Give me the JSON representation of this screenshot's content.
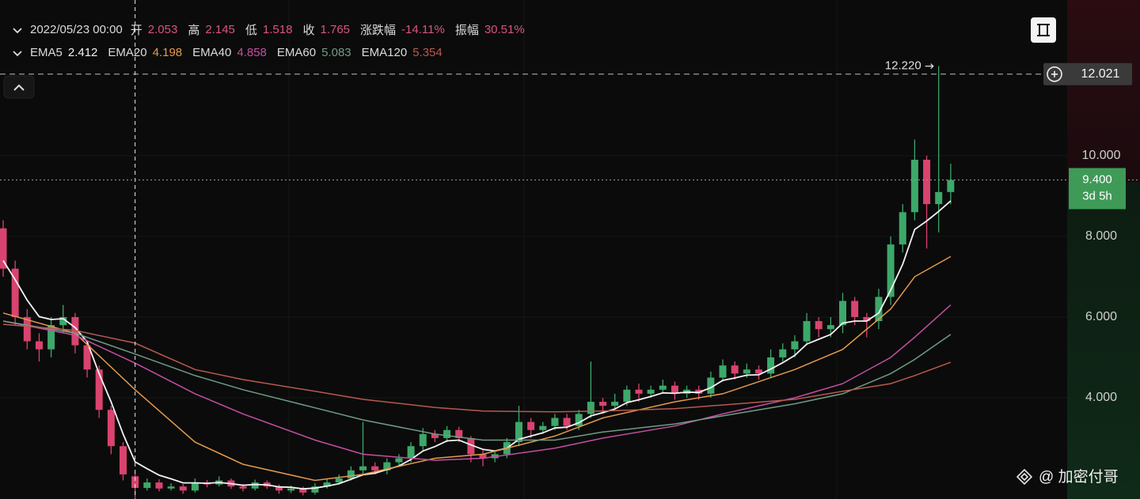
{
  "chart_data": {
    "type": "candlestick",
    "open": [
      8.2,
      7.2,
      6.0,
      5.4,
      5.2,
      5.8,
      6.0,
      5.3,
      4.7,
      3.7,
      2.8,
      2.053,
      1.765,
      1.9,
      1.75,
      1.8,
      1.7,
      1.9,
      1.85,
      1.95,
      1.8,
      1.75,
      1.9,
      1.8,
      1.7,
      1.75,
      1.65,
      1.8,
      1.9,
      2.0,
      2.2,
      2.3,
      2.2,
      2.4,
      2.5,
      2.8,
      3.1,
      3.0,
      3.2,
      3.0,
      2.6,
      2.5,
      2.6,
      2.9,
      3.4,
      3.2,
      3.3,
      3.5,
      3.3,
      3.6,
      3.9,
      3.8,
      3.9,
      4.2,
      4.1,
      4.2,
      4.3,
      4.1,
      4.2,
      4.1,
      4.5,
      4.8,
      4.6,
      4.7,
      4.6,
      5.0,
      5.2,
      5.4,
      5.9,
      5.7,
      5.8,
      6.4,
      6.0,
      5.9,
      6.5,
      7.8,
      8.6,
      9.9,
      8.8,
      9.1
    ],
    "high": [
      8.4,
      7.4,
      6.2,
      5.6,
      6.0,
      6.3,
      6.1,
      5.4,
      4.8,
      3.8,
      2.9,
      2.145,
      2.0,
      1.98,
      1.88,
      1.86,
      2.0,
      1.96,
      2.05,
      2.0,
      1.86,
      1.97,
      1.95,
      1.85,
      1.82,
      1.8,
      1.88,
      1.98,
      2.1,
      2.3,
      3.4,
      2.4,
      2.5,
      2.6,
      2.9,
      3.25,
      3.2,
      3.3,
      3.28,
      3.05,
      2.7,
      2.7,
      3.0,
      3.8,
      3.5,
      3.4,
      3.6,
      3.6,
      3.7,
      4.9,
      4.0,
      4.1,
      4.3,
      4.35,
      4.3,
      4.45,
      4.4,
      4.3,
      4.3,
      4.65,
      4.95,
      4.9,
      4.85,
      4.8,
      5.2,
      5.35,
      5.55,
      6.1,
      6.0,
      6.0,
      6.6,
      6.5,
      6.1,
      6.7,
      8.0,
      8.8,
      10.4,
      10.0,
      12.22,
      9.8
    ],
    "low": [
      7.0,
      5.8,
      5.2,
      4.9,
      5.0,
      5.6,
      5.1,
      4.5,
      3.5,
      2.6,
      1.95,
      1.518,
      1.7,
      1.68,
      1.7,
      1.62,
      1.65,
      1.78,
      1.8,
      1.74,
      1.68,
      1.7,
      1.74,
      1.62,
      1.64,
      1.58,
      1.6,
      1.75,
      1.85,
      1.95,
      2.1,
      2.1,
      2.1,
      2.3,
      2.4,
      2.7,
      2.9,
      2.9,
      2.9,
      2.4,
      2.3,
      2.4,
      2.5,
      2.8,
      3.0,
      3.1,
      3.2,
      3.2,
      3.2,
      3.5,
      3.6,
      3.7,
      3.8,
      3.9,
      4.0,
      4.1,
      3.95,
      4.0,
      3.95,
      4.0,
      4.4,
      4.45,
      4.5,
      4.45,
      4.5,
      4.9,
      5.0,
      5.3,
      5.5,
      5.5,
      5.6,
      5.8,
      5.5,
      5.7,
      6.3,
      7.6,
      8.4,
      7.7,
      8.1,
      8.8
    ],
    "close": [
      7.2,
      6.0,
      5.4,
      5.2,
      5.8,
      6.0,
      5.3,
      4.7,
      3.7,
      2.8,
      2.1,
      1.765,
      1.9,
      1.75,
      1.8,
      1.7,
      1.9,
      1.85,
      1.95,
      1.8,
      1.75,
      1.9,
      1.8,
      1.7,
      1.75,
      1.65,
      1.8,
      1.9,
      2.0,
      2.2,
      2.3,
      2.2,
      2.4,
      2.5,
      2.8,
      3.1,
      3.0,
      3.2,
      3.0,
      2.6,
      2.5,
      2.6,
      2.9,
      3.4,
      3.2,
      3.3,
      3.5,
      3.3,
      3.6,
      3.9,
      3.8,
      3.9,
      4.2,
      4.1,
      4.2,
      4.3,
      4.1,
      4.2,
      4.1,
      4.5,
      4.8,
      4.6,
      4.7,
      4.6,
      5.0,
      5.2,
      5.4,
      5.9,
      5.7,
      5.8,
      6.4,
      6.0,
      5.9,
      6.5,
      7.8,
      8.6,
      9.9,
      8.8,
      9.1,
      9.4
    ],
    "up_color": "#3da86a",
    "down_color": "#d9436f",
    "ylim": [
      1.49,
      13.86
    ],
    "yticks": [
      {
        "value": 4,
        "label": "4.000"
      },
      {
        "value": 6,
        "label": "6.000"
      },
      {
        "value": 8,
        "label": "8.000"
      },
      {
        "value": 10,
        "label": "10.000"
      }
    ],
    "grid": true,
    "crosshair": {
      "index": 11,
      "time": "2022/05/23 00:00",
      "change": "-14.11%",
      "amplitude": "30.51%"
    },
    "header_labels": {
      "open": "开",
      "high": "高",
      "low": "低",
      "close": "收",
      "change": "涨跌幅",
      "amplitude": "振幅"
    },
    "ema": [
      {
        "name": "EMA5",
        "color": "#f2f2f2",
        "values": [
          7.4,
          6.93,
          6.42,
          6.01,
          5.94,
          5.96,
          5.74,
          5.39,
          4.6,
          3.9,
          3.1,
          2.412,
          2.24,
          2.08,
          1.99,
          1.89,
          1.89,
          1.88,
          1.9,
          1.87,
          1.83,
          1.85,
          1.84,
          1.79,
          1.78,
          1.74,
          1.76,
          1.81,
          1.87,
          1.98,
          2.09,
          2.13,
          2.22,
          2.31,
          2.47,
          2.68,
          2.79,
          2.93,
          2.95,
          2.83,
          2.72,
          2.68,
          2.75,
          2.97,
          3.05,
          3.13,
          3.25,
          3.27,
          3.38,
          3.55,
          3.63,
          3.72,
          3.88,
          3.95,
          4.03,
          4.12,
          4.11,
          4.14,
          4.13,
          4.25,
          4.43,
          4.49,
          4.56,
          4.57,
          4.71,
          4.87,
          5.05,
          5.33,
          5.45,
          5.57,
          5.85,
          5.9,
          5.9,
          6.1,
          6.67,
          7.31,
          8.17,
          8.38,
          8.62,
          8.88
        ]
      },
      {
        "name": "EMA20",
        "color": "#e39a4e",
        "x": [
          0,
          6,
          11,
          16,
          20,
          26,
          30,
          36,
          40,
          46,
          50,
          56,
          60,
          66,
          70,
          74,
          76,
          79
        ],
        "values": [
          6.1,
          5.6,
          4.198,
          2.9,
          2.35,
          1.95,
          2.1,
          2.5,
          2.6,
          3.05,
          3.5,
          3.9,
          4.1,
          4.7,
          5.2,
          6.2,
          7.0,
          7.5
        ]
      },
      {
        "name": "EMA40",
        "color": "#c44fa2",
        "x": [
          0,
          6,
          11,
          16,
          20,
          26,
          30,
          36,
          40,
          46,
          50,
          56,
          60,
          66,
          70,
          74,
          76,
          79
        ],
        "values": [
          5.9,
          5.55,
          4.858,
          4.1,
          3.6,
          2.95,
          2.6,
          2.45,
          2.5,
          2.75,
          3.0,
          3.3,
          3.6,
          4.0,
          4.35,
          5.0,
          5.5,
          6.3
        ]
      },
      {
        "name": "EMA60",
        "color": "#6f9c85",
        "x": [
          0,
          6,
          11,
          16,
          20,
          26,
          30,
          36,
          40,
          46,
          50,
          56,
          60,
          66,
          70,
          74,
          76,
          79
        ],
        "values": [
          5.9,
          5.6,
          5.083,
          4.55,
          4.2,
          3.75,
          3.45,
          3.1,
          2.95,
          2.95,
          3.15,
          3.35,
          3.55,
          3.85,
          4.1,
          4.6,
          4.95,
          5.57
        ]
      },
      {
        "name": "EMA120",
        "color": "#b8594f",
        "x": [
          0,
          6,
          11,
          16,
          20,
          26,
          30,
          36,
          40,
          46,
          50,
          56,
          60,
          66,
          70,
          74,
          76,
          79
        ],
        "values": [
          5.82,
          5.67,
          5.354,
          4.7,
          4.45,
          4.16,
          3.96,
          3.76,
          3.67,
          3.65,
          3.67,
          3.73,
          3.82,
          3.96,
          4.16,
          4.35,
          4.55,
          4.88
        ]
      }
    ],
    "max_marker": {
      "value": 12.22,
      "label": "12.220"
    },
    "price_line": {
      "value": 12.021
    },
    "last_price": {
      "value": 9.4,
      "label": "9.400",
      "countdown": "3d 5h"
    },
    "watermark": "@ 加密付哥"
  }
}
